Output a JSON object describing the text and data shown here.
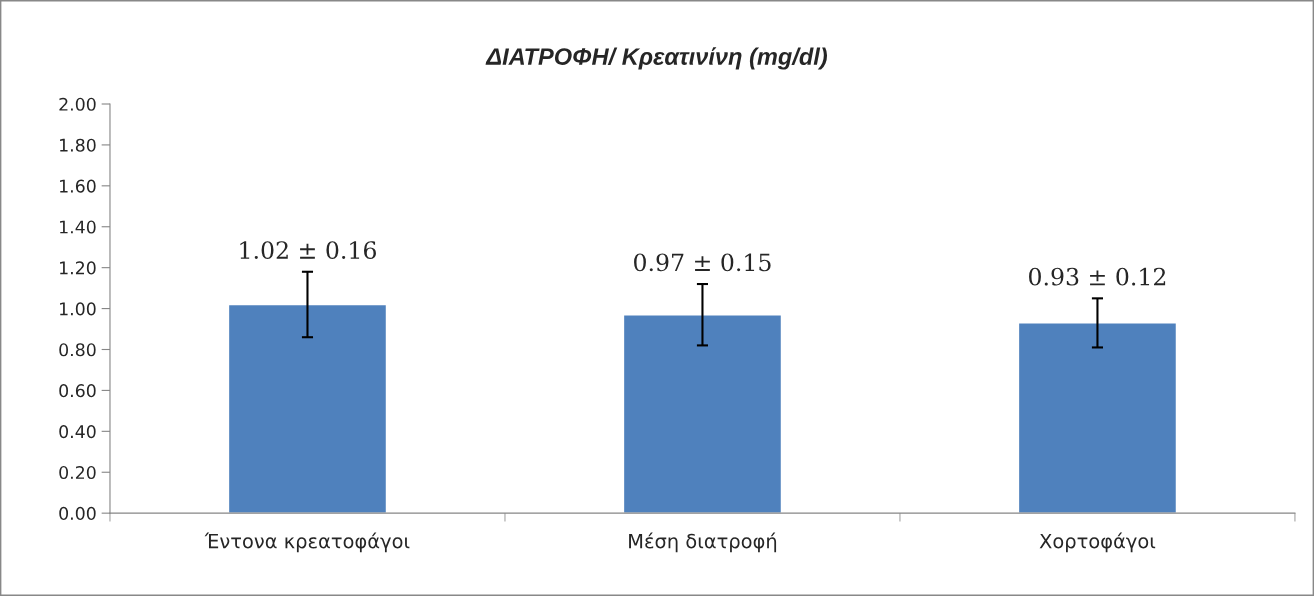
{
  "chart_data": {
    "type": "bar",
    "title": "ΔΙΑΤΡΟΦΗ/ Κρεατινίνη (mg/dl)",
    "categories": [
      "Έντονα κρεατοφάγοι",
      "Μέση διατροφή",
      "Χορτοφάγοι"
    ],
    "values": [
      1.02,
      0.97,
      0.93
    ],
    "errors": [
      0.16,
      0.15,
      0.12
    ],
    "value_labels": [
      "1.02 ± 0.16",
      "0.97 ± 0.15",
      "0.93 ± 0.12"
    ],
    "color": "#4f81bd",
    "ylim": [
      0,
      2
    ],
    "yticks": [
      {
        "value": 0,
        "label": "0.00"
      },
      {
        "value": 0.2,
        "label": "0.20"
      },
      {
        "value": 0.4,
        "label": "0.40"
      },
      {
        "value": 0.6,
        "label": "0.60"
      },
      {
        "value": 0.8,
        "label": "0.80"
      },
      {
        "value": 1.0,
        "label": "1.00"
      },
      {
        "value": 1.2,
        "label": "1.20"
      },
      {
        "value": 1.4,
        "label": "1.40"
      },
      {
        "value": 1.6,
        "label": "1.60"
      },
      {
        "value": 1.8,
        "label": "1.80"
      },
      {
        "value": 2.0,
        "label": "2.00"
      }
    ],
    "grid": false,
    "legend": false
  }
}
